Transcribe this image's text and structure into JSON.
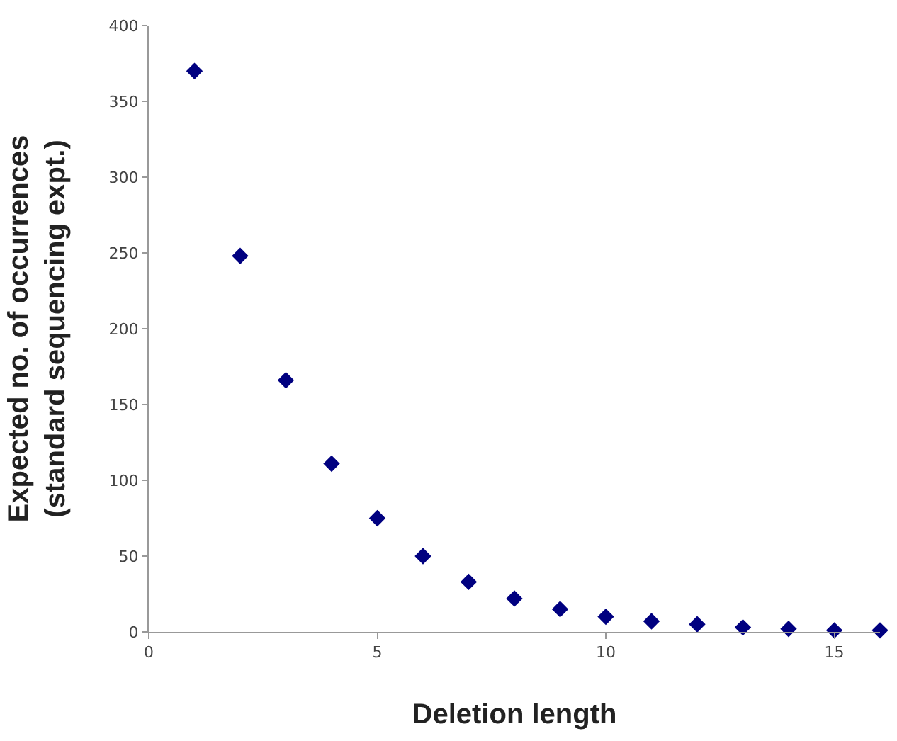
{
  "chart_data": {
    "type": "scatter",
    "xlabel": "Deletion length",
    "ylabel": "Expected no. of occurrences\n(standard sequencing expt.)",
    "x": [
      1,
      2,
      3,
      4,
      5,
      6,
      7,
      8,
      9,
      10,
      11,
      12,
      13,
      14,
      15,
      16
    ],
    "series": [
      {
        "color": "#000080",
        "values": [
          370,
          248,
          166,
          111,
          75,
          50,
          33,
          22,
          15,
          10,
          7,
          5,
          3,
          2,
          1,
          1
        ]
      }
    ],
    "xlim": [
      0,
      16
    ],
    "xticks": [
      0,
      5,
      10,
      15
    ],
    "ylim": [
      0,
      400
    ],
    "yticks": [
      0,
      50,
      100,
      150,
      200,
      250,
      300,
      350,
      400
    ],
    "marker": "diamond"
  }
}
